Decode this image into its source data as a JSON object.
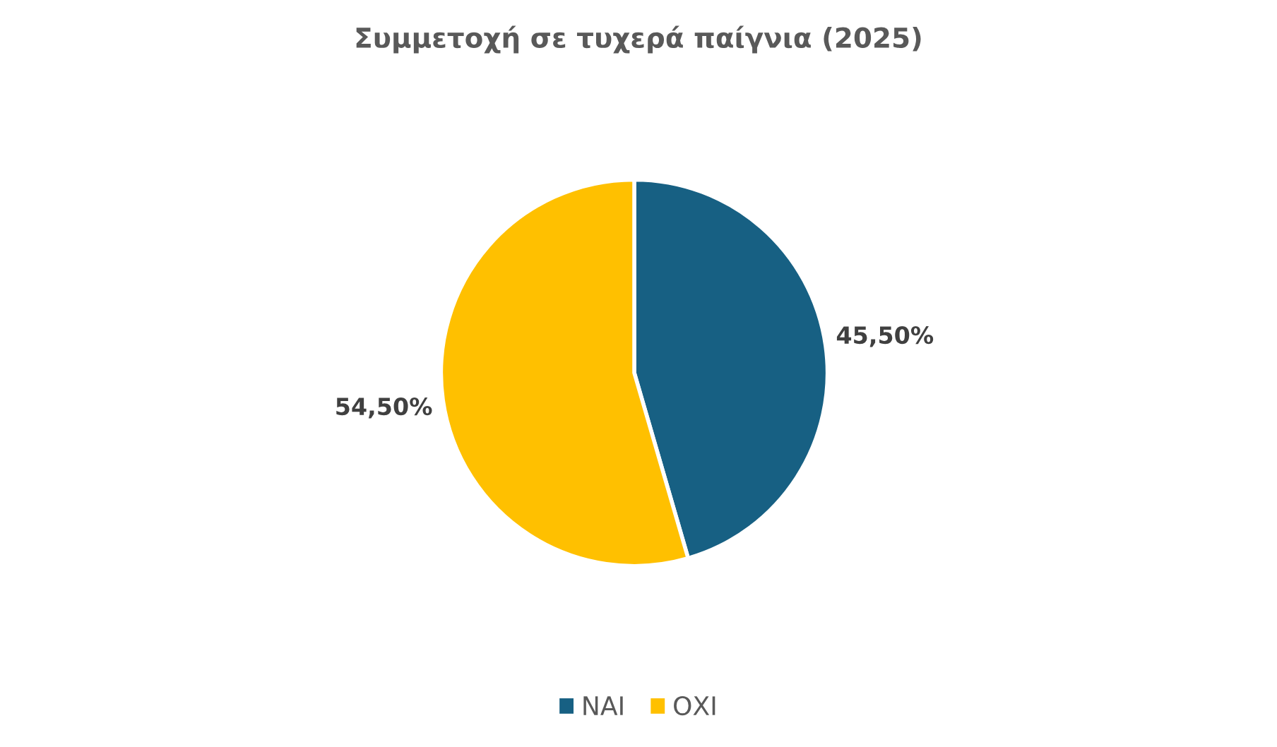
{
  "chart_data": {
    "type": "pie",
    "title": "Συμμετοχή σε τυχερά παίγνια (2025)",
    "categories": [
      "ΝΑΙ",
      "ΟΧΙ"
    ],
    "values": [
      45.5,
      54.5
    ],
    "colors": [
      "#176083",
      "#ffc000"
    ],
    "value_labels": [
      "45,50%",
      "54,50%"
    ],
    "legend": "bottom"
  }
}
